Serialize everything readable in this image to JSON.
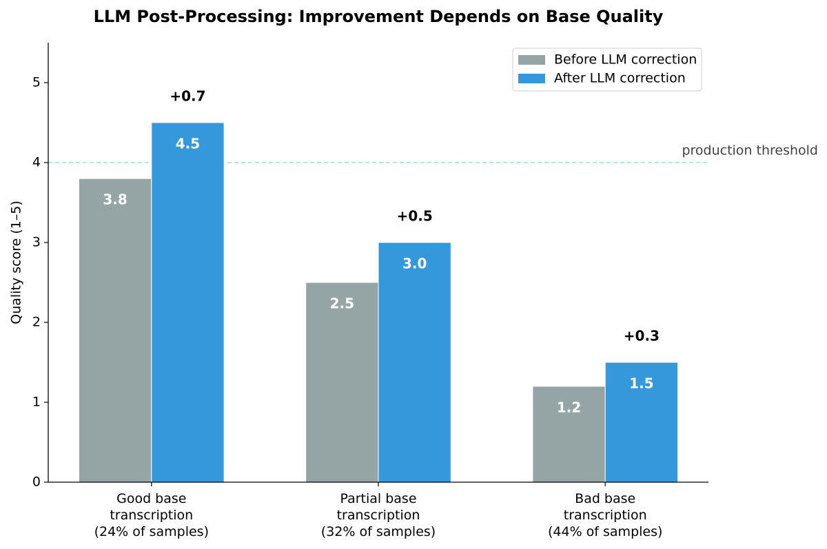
{
  "chart_data": {
    "type": "bar",
    "title": "LLM Post-Processing: Improvement Depends on Base Quality",
    "y_label": "Quality score (1–5)",
    "categories": [
      "Good base\ntranscription\n(24% of samples)",
      "Partial base\ntranscription\n(32% of samples)",
      "Bad base\ntranscription\n(44% of samples)"
    ],
    "series": [
      {
        "name": "Before LLM correction",
        "color": "#95a5a6",
        "values": [
          3.8,
          2.5,
          1.2
        ],
        "value_labels": [
          "3.8",
          "2.5",
          "1.2"
        ]
      },
      {
        "name": "After LLM correction",
        "color": "#3498db",
        "values": [
          4.5,
          3.0,
          1.5
        ],
        "value_labels": [
          "4.5",
          "3.0",
          "1.5"
        ]
      }
    ],
    "improvement_labels": [
      "+0.7",
      "+0.5",
      "+0.3"
    ],
    "improvement_color": "#2ecc71",
    "threshold": {
      "value": 4,
      "label": "production threshold",
      "color": "#2ecc71"
    },
    "ylim": [
      0,
      5.5
    ],
    "yticks": [
      0,
      1,
      2,
      3,
      4,
      5
    ],
    "legend": "upper right"
  }
}
